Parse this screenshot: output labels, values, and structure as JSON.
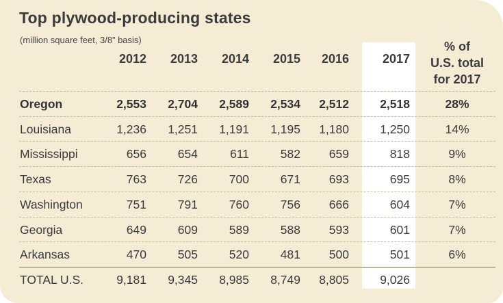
{
  "title": "Top plywood-producing states",
  "subtitle": "(million square feet, 3/8” basis)",
  "columns": [
    "2012",
    "2013",
    "2014",
    "2015",
    "2016",
    "2017"
  ],
  "pct_header": [
    "% of",
    "U.S. total",
    "for 2017"
  ],
  "rows": [
    {
      "state": "Oregon",
      "values": [
        "2,553",
        "2,704",
        "2,589",
        "2,534",
        "2,512",
        "2,518"
      ],
      "pct": "28%"
    },
    {
      "state": "Louisiana",
      "values": [
        "1,236",
        "1,251",
        "1,191",
        "1,195",
        "1,180",
        "1,250"
      ],
      "pct": "14%"
    },
    {
      "state": "Mississippi",
      "values": [
        "656",
        "654",
        "611",
        "582",
        "659",
        "818"
      ],
      "pct": "9%"
    },
    {
      "state": "Texas",
      "values": [
        "763",
        "726",
        "700",
        "671",
        "693",
        "695"
      ],
      "pct": "8%"
    },
    {
      "state": "Washington",
      "values": [
        "751",
        "791",
        "760",
        "756",
        "666",
        "604"
      ],
      "pct": "7%"
    },
    {
      "state": "Georgia",
      "values": [
        "649",
        "609",
        "589",
        "588",
        "593",
        "601"
      ],
      "pct": "7%"
    },
    {
      "state": "Arkansas",
      "values": [
        "470",
        "505",
        "520",
        "481",
        "500",
        "501"
      ],
      "pct": "6%"
    }
  ],
  "total": {
    "state": "TOTAL U.S.",
    "values": [
      "9,181",
      "9,345",
      "8,985",
      "8,749",
      "8,805",
      "9,026"
    ],
    "pct": ""
  },
  "colors": {
    "background": "#f5ecd6",
    "highlight_column": "#ffffff",
    "text": "#3a3a3a",
    "rule": "#c8b998"
  }
}
